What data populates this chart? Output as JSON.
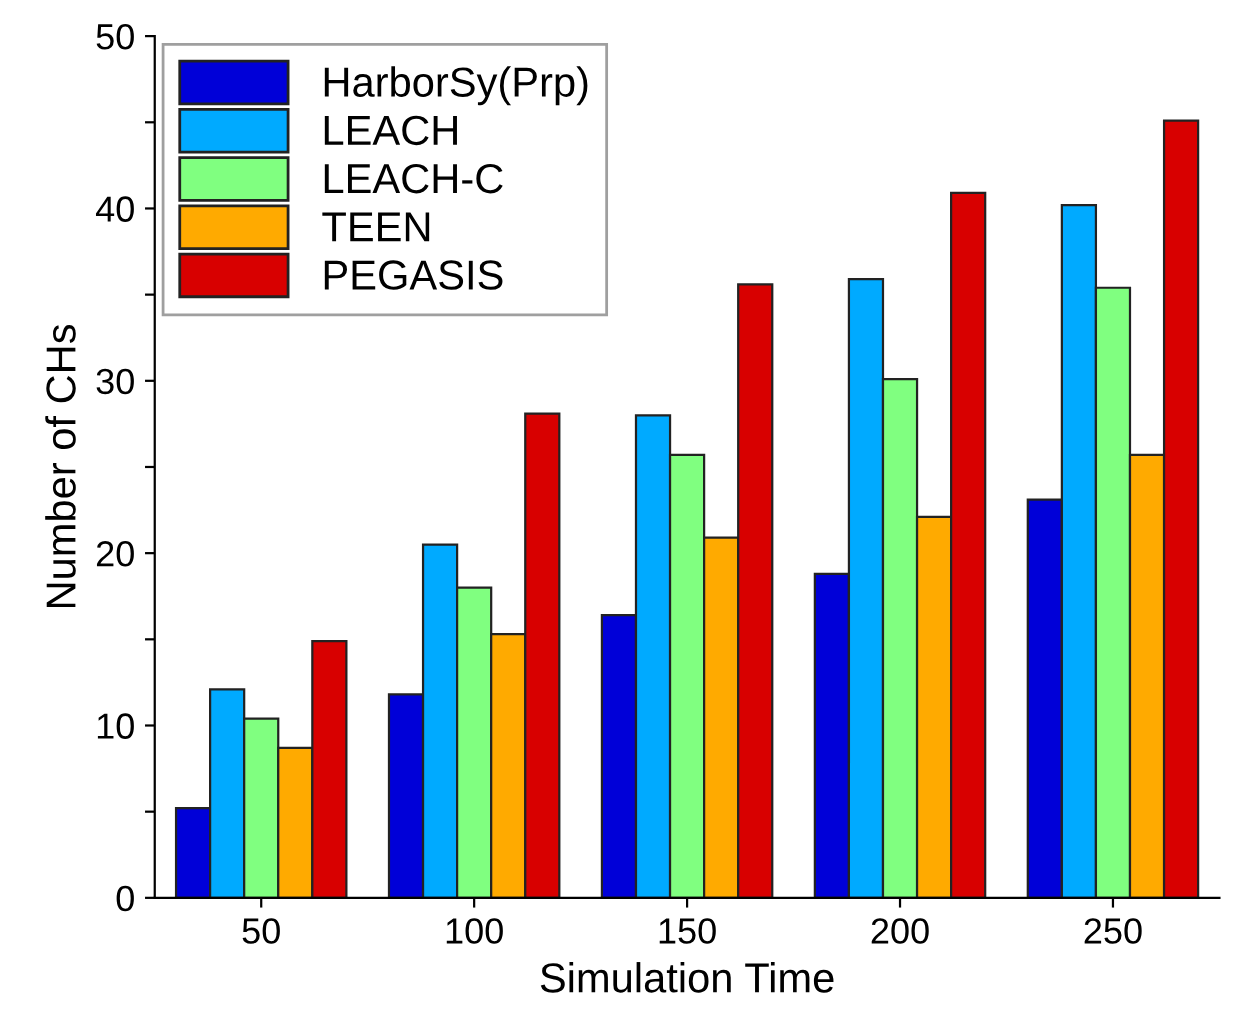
{
  "chart_data": {
    "type": "bar",
    "xlabel": "Simulation Time",
    "ylabel": "Number of CHs",
    "categories": [
      "50",
      "100",
      "150",
      "200",
      "250"
    ],
    "series": [
      {
        "name": "HarborSy(Prp)",
        "color": "#0000d8",
        "values": [
          5.2,
          11.8,
          16.4,
          18.8,
          23.1
        ]
      },
      {
        "name": "LEACH",
        "color": "#00aaff",
        "values": [
          12.1,
          20.5,
          28.0,
          35.9,
          40.2
        ]
      },
      {
        "name": "LEACH-C",
        "color": "#80ff80",
        "values": [
          10.4,
          18.0,
          25.7,
          30.1,
          35.4
        ]
      },
      {
        "name": "TEEN",
        "color": "#ffaa00",
        "values": [
          8.7,
          15.3,
          20.9,
          22.1,
          25.7
        ]
      },
      {
        "name": "PEGASIS",
        "color": "#d80000",
        "values": [
          14.9,
          28.1,
          35.6,
          40.9,
          45.1
        ]
      }
    ],
    "ylim": [
      0,
      50
    ],
    "yticks": [
      0,
      {
        "value": 5,
        "label": null
      },
      10,
      {
        "value": 15,
        "label": null
      },
      20,
      {
        "value": 25,
        "label": null
      },
      30,
      {
        "value": 35,
        "label": null
      },
      40,
      {
        "value": 45,
        "label": null
      },
      50
    ],
    "grid": false,
    "legend": "top left"
  }
}
